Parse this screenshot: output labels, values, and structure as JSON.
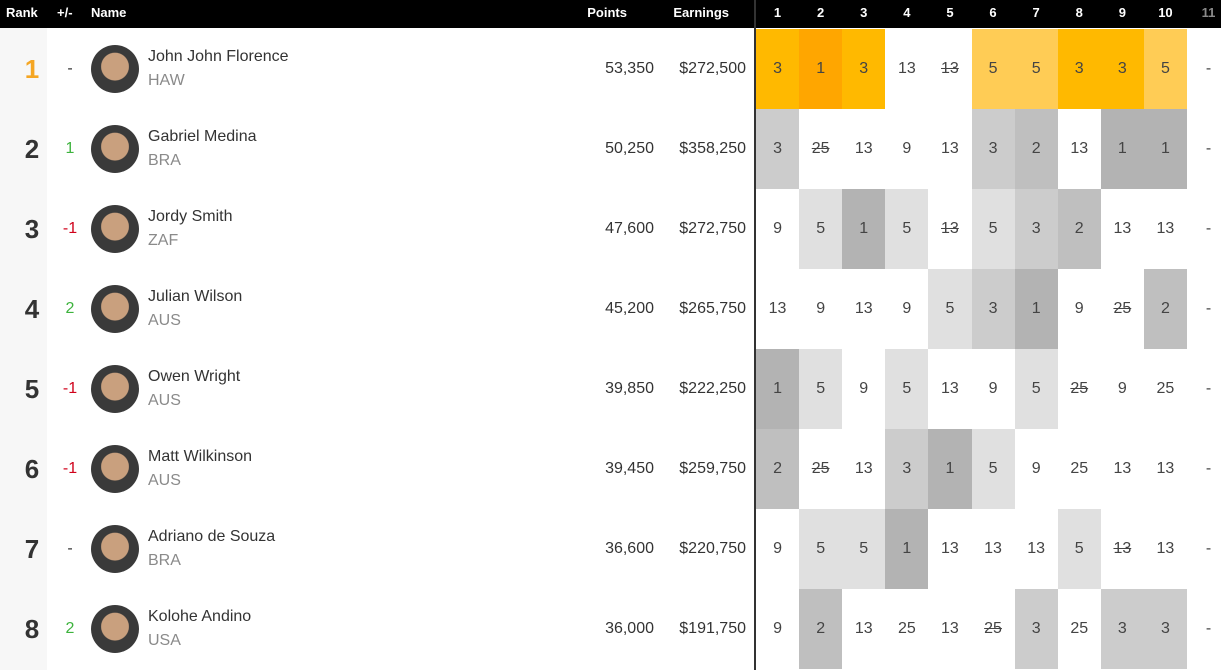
{
  "header": {
    "columns": [
      "Rank",
      "+/-",
      "Name",
      "Points",
      "Earnings"
    ],
    "events": [
      "1",
      "2",
      "3",
      "4",
      "5",
      "6",
      "7",
      "8",
      "9",
      "10",
      "11"
    ],
    "future_event_color": "#8a8a8a"
  },
  "rows": [
    {
      "rank": 1,
      "rank_color": "#f5a623",
      "change": "-",
      "change_color": "#333333",
      "name": "John John Florence",
      "country": "HAW",
      "points": "53,350",
      "earnings": "$272,500",
      "results": [
        {
          "text": "3",
          "color": "#ffb900"
        },
        {
          "text": "1",
          "color": "#ffa600"
        },
        {
          "text": "3",
          "color": "#ffb900"
        },
        {
          "text": "13",
          "color": "#ffffff"
        },
        {
          "text": "13",
          "color": "#ffffff",
          "struck": true
        },
        {
          "text": "5",
          "color": "#ffcc55"
        },
        {
          "text": "5",
          "color": "#ffcc55"
        },
        {
          "text": "3",
          "color": "#ffb900"
        },
        {
          "text": "3",
          "color": "#ffb900"
        },
        {
          "text": "5",
          "color": "#ffcc55"
        },
        {
          "text": "-",
          "color": "#ffffff"
        }
      ]
    },
    {
      "rank": 2,
      "rank_color": "#333333",
      "change": "1",
      "change_color": "#3db33d",
      "name": "Gabriel Medina",
      "country": "BRA",
      "points": "50,250",
      "earnings": "$358,250",
      "results": [
        {
          "text": "3",
          "color": "#cccccc"
        },
        {
          "text": "25",
          "color": "#ffffff",
          "struck": true
        },
        {
          "text": "13",
          "color": "#ffffff"
        },
        {
          "text": "9",
          "color": "#ffffff"
        },
        {
          "text": "13",
          "color": "#ffffff"
        },
        {
          "text": "3",
          "color": "#cccccc"
        },
        {
          "text": "2",
          "color": "#bfbfbf"
        },
        {
          "text": "13",
          "color": "#ffffff"
        },
        {
          "text": "1",
          "color": "#b3b3b3"
        },
        {
          "text": "1",
          "color": "#b3b3b3"
        },
        {
          "text": "-",
          "color": "#ffffff"
        }
      ]
    },
    {
      "rank": 3,
      "rank_color": "#333333",
      "change": "-1",
      "change_color": "#d0021b",
      "name": "Jordy Smith",
      "country": "ZAF",
      "points": "47,600",
      "earnings": "$272,750",
      "results": [
        {
          "text": "9",
          "color": "#ffffff"
        },
        {
          "text": "5",
          "color": "#e0e0e0"
        },
        {
          "text": "1",
          "color": "#b3b3b3"
        },
        {
          "text": "5",
          "color": "#e0e0e0"
        },
        {
          "text": "13",
          "color": "#ffffff",
          "struck": true
        },
        {
          "text": "5",
          "color": "#e0e0e0"
        },
        {
          "text": "3",
          "color": "#cccccc"
        },
        {
          "text": "2",
          "color": "#bfbfbf"
        },
        {
          "text": "13",
          "color": "#ffffff"
        },
        {
          "text": "13",
          "color": "#ffffff"
        },
        {
          "text": "-",
          "color": "#ffffff"
        }
      ]
    },
    {
      "rank": 4,
      "rank_color": "#333333",
      "change": "2",
      "change_color": "#3db33d",
      "name": "Julian Wilson",
      "country": "AUS",
      "points": "45,200",
      "earnings": "$265,750",
      "results": [
        {
          "text": "13",
          "color": "#ffffff"
        },
        {
          "text": "9",
          "color": "#ffffff"
        },
        {
          "text": "13",
          "color": "#ffffff"
        },
        {
          "text": "9",
          "color": "#ffffff"
        },
        {
          "text": "5",
          "color": "#e0e0e0"
        },
        {
          "text": "3",
          "color": "#cccccc"
        },
        {
          "text": "1",
          "color": "#b3b3b3"
        },
        {
          "text": "9",
          "color": "#ffffff"
        },
        {
          "text": "25",
          "color": "#ffffff",
          "struck": true
        },
        {
          "text": "2",
          "color": "#bfbfbf"
        },
        {
          "text": "-",
          "color": "#ffffff"
        }
      ]
    },
    {
      "rank": 5,
      "rank_color": "#333333",
      "change": "-1",
      "change_color": "#d0021b",
      "name": "Owen Wright",
      "country": "AUS",
      "points": "39,850",
      "earnings": "$222,250",
      "results": [
        {
          "text": "1",
          "color": "#b3b3b3"
        },
        {
          "text": "5",
          "color": "#e0e0e0"
        },
        {
          "text": "9",
          "color": "#ffffff"
        },
        {
          "text": "5",
          "color": "#e0e0e0"
        },
        {
          "text": "13",
          "color": "#ffffff"
        },
        {
          "text": "9",
          "color": "#ffffff"
        },
        {
          "text": "5",
          "color": "#e0e0e0"
        },
        {
          "text": "25",
          "color": "#ffffff",
          "struck": true
        },
        {
          "text": "9",
          "color": "#ffffff"
        },
        {
          "text": "25",
          "color": "#ffffff"
        },
        {
          "text": "-",
          "color": "#ffffff"
        }
      ]
    },
    {
      "rank": 6,
      "rank_color": "#333333",
      "change": "-1",
      "change_color": "#d0021b",
      "name": "Matt Wilkinson",
      "country": "AUS",
      "points": "39,450",
      "earnings": "$259,750",
      "results": [
        {
          "text": "2",
          "color": "#bfbfbf"
        },
        {
          "text": "25",
          "color": "#ffffff",
          "struck": true
        },
        {
          "text": "13",
          "color": "#ffffff"
        },
        {
          "text": "3",
          "color": "#cccccc"
        },
        {
          "text": "1",
          "color": "#b3b3b3"
        },
        {
          "text": "5",
          "color": "#e0e0e0"
        },
        {
          "text": "9",
          "color": "#ffffff"
        },
        {
          "text": "25",
          "color": "#ffffff"
        },
        {
          "text": "13",
          "color": "#ffffff"
        },
        {
          "text": "13",
          "color": "#ffffff"
        },
        {
          "text": "-",
          "color": "#ffffff"
        }
      ]
    },
    {
      "rank": 7,
      "rank_color": "#333333",
      "change": "-",
      "change_color": "#333333",
      "name": "Adriano de Souza",
      "country": "BRA",
      "points": "36,600",
      "earnings": "$220,750",
      "results": [
        {
          "text": "9",
          "color": "#ffffff"
        },
        {
          "text": "5",
          "color": "#e0e0e0"
        },
        {
          "text": "5",
          "color": "#e0e0e0"
        },
        {
          "text": "1",
          "color": "#b3b3b3"
        },
        {
          "text": "13",
          "color": "#ffffff"
        },
        {
          "text": "13",
          "color": "#ffffff"
        },
        {
          "text": "13",
          "color": "#ffffff"
        },
        {
          "text": "5",
          "color": "#e0e0e0"
        },
        {
          "text": "13",
          "color": "#ffffff",
          "struck": true
        },
        {
          "text": "13",
          "color": "#ffffff"
        },
        {
          "text": "-",
          "color": "#ffffff"
        }
      ]
    },
    {
      "rank": 8,
      "rank_color": "#333333",
      "change": "2",
      "change_color": "#3db33d",
      "name": "Kolohe Andino",
      "country": "USA",
      "points": "36,000",
      "earnings": "$191,750",
      "results": [
        {
          "text": "9",
          "color": "#ffffff"
        },
        {
          "text": "2",
          "color": "#bfbfbf"
        },
        {
          "text": "13",
          "color": "#ffffff"
        },
        {
          "text": "25",
          "color": "#ffffff"
        },
        {
          "text": "13",
          "color": "#ffffff"
        },
        {
          "text": "25",
          "color": "#ffffff",
          "struck": true
        },
        {
          "text": "3",
          "color": "#cccccc"
        },
        {
          "text": "25",
          "color": "#ffffff"
        },
        {
          "text": "3",
          "color": "#cccccc"
        },
        {
          "text": "3",
          "color": "#cccccc"
        },
        {
          "text": "-",
          "color": "#ffffff"
        }
      ]
    }
  ]
}
